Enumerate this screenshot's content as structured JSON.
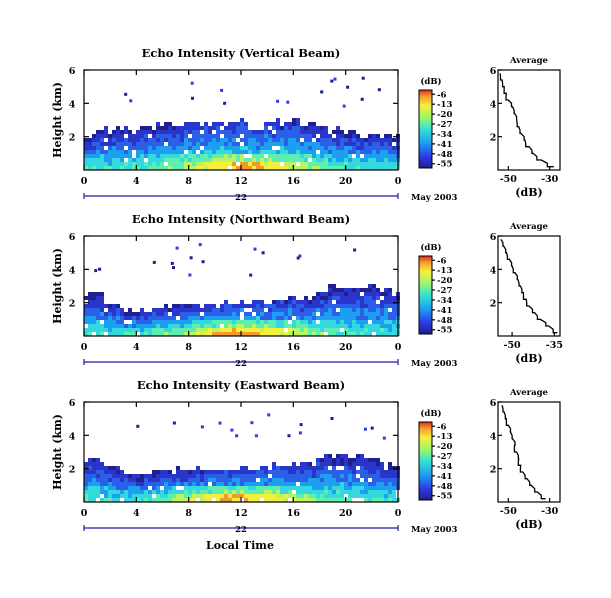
{
  "figure": {
    "xlabel": "Local Time",
    "date_label": "May 2003",
    "day_label": "22"
  },
  "chart_data": [
    {
      "type": "heatmap",
      "title": "Echo Intensity (Vertical Beam)",
      "ylabel": "Height (km)",
      "xlabel": "Local Time",
      "x_ticks": [
        "0",
        "4",
        "8",
        "12",
        "16",
        "20",
        "0"
      ],
      "xlim": [
        0,
        24
      ],
      "y_ticks": [
        "2",
        "4",
        "6"
      ],
      "ylim": [
        0,
        6
      ],
      "colorbar": {
        "label": "(dB)",
        "ticks": [
          "-6",
          "-13",
          "-20",
          "-27",
          "-34",
          "-41",
          "-48",
          "-55"
        ],
        "range": [
          -58,
          -3
        ]
      },
      "top_km": [
        2.0,
        2.3,
        2.4,
        2.5,
        2.4,
        2.5,
        2.8,
        2.7,
        2.8,
        2.8,
        2.9,
        2.9,
        2.9,
        2.6,
        2.8,
        2.9,
        2.9,
        2.8,
        2.7,
        2.6,
        2.4,
        2.0,
        2.2,
        2.1,
        2.0
      ],
      "average_profile": {
        "title": "Average",
        "xlabel": "(dB)",
        "x_ticks": [
          "-50",
          "-30"
        ],
        "xlim": [
          -55,
          -25
        ],
        "y_ticks": [
          "2",
          "4",
          "6"
        ],
        "ylim": [
          0,
          6
        ],
        "height_km": [
          0.2,
          0.6,
          1.0,
          1.4,
          1.8,
          2.2,
          2.6,
          3.0,
          3.4,
          3.8,
          4.2,
          4.6,
          5.0,
          5.4,
          5.8
        ],
        "db": [
          -28,
          -34,
          -38,
          -40,
          -42,
          -44,
          -45,
          -46,
          -47,
          -48,
          -50,
          -51,
          -52,
          -53,
          -54
        ]
      }
    },
    {
      "type": "heatmap",
      "title": "Echo Intensity (Northward Beam)",
      "ylabel": "Height (km)",
      "xlabel": "Local Time",
      "x_ticks": [
        "0",
        "4",
        "8",
        "12",
        "16",
        "20",
        "0"
      ],
      "xlim": [
        0,
        24
      ],
      "y_ticks": [
        "2",
        "4",
        "6"
      ],
      "ylim": [
        0,
        6
      ],
      "colorbar": {
        "label": "(dB)",
        "ticks": [
          "-6",
          "-13",
          "-20",
          "-27",
          "-34",
          "-41",
          "-48",
          "-55"
        ],
        "range": [
          -58,
          -3
        ]
      },
      "top_km": [
        2.6,
        2.5,
        2.0,
        1.6,
        1.5,
        1.6,
        1.7,
        1.8,
        1.8,
        1.9,
        1.9,
        1.9,
        2.0,
        2.1,
        2.1,
        2.1,
        2.2,
        2.3,
        2.7,
        3.0,
        3.0,
        3.0,
        2.9,
        2.8,
        2.6
      ],
      "average_profile": {
        "title": "Average",
        "xlabel": "(dB)",
        "x_ticks": [
          "-50",
          "-35"
        ],
        "xlim": [
          -55,
          -33
        ],
        "y_ticks": [
          "2",
          "4",
          "6"
        ],
        "ylim": [
          0,
          6
        ],
        "height_km": [
          0.2,
          0.6,
          1.0,
          1.4,
          1.8,
          2.2,
          2.6,
          3.0,
          3.4,
          3.8,
          4.2,
          4.6,
          5.0,
          5.4,
          5.8
        ],
        "db": [
          -34,
          -37,
          -40,
          -42,
          -44,
          -45,
          -46,
          -47,
          -48,
          -49,
          -50,
          -51,
          -52,
          -53,
          -54
        ]
      }
    },
    {
      "type": "heatmap",
      "title": "Echo Intensity (Eastward Beam)",
      "ylabel": "Height (km)",
      "xlabel": "Local Time",
      "x_ticks": [
        "0",
        "4",
        "8",
        "12",
        "16",
        "20",
        "0"
      ],
      "xlim": [
        0,
        24
      ],
      "y_ticks": [
        "2",
        "4",
        "6"
      ],
      "ylim": [
        0,
        6
      ],
      "colorbar": {
        "label": "(dB)",
        "ticks": [
          "-6",
          "-13",
          "-20",
          "-27",
          "-34",
          "-41",
          "-48",
          "-55"
        ],
        "range": [
          -58,
          -3
        ]
      },
      "top_km": [
        2.6,
        2.5,
        2.1,
        1.8,
        1.7,
        1.8,
        1.9,
        1.9,
        1.9,
        2.0,
        2.0,
        2.0,
        2.1,
        2.1,
        2.2,
        2.2,
        2.3,
        2.4,
        2.6,
        2.8,
        2.8,
        2.8,
        2.7,
        2.4,
        2.2
      ],
      "average_profile": {
        "title": "Average",
        "xlabel": "(dB)",
        "x_ticks": [
          "-50",
          "-30"
        ],
        "xlim": [
          -55,
          -25
        ],
        "y_ticks": [
          "2",
          "4",
          "6"
        ],
        "ylim": [
          0,
          6
        ],
        "height_km": [
          0.2,
          0.6,
          1.0,
          1.4,
          1.8,
          2.2,
          2.6,
          3.0,
          3.4,
          3.8,
          4.2,
          4.6,
          5.0,
          5.4,
          5.8
        ],
        "db": [
          -32,
          -36,
          -39,
          -41,
          -43,
          -44,
          -45,
          -46,
          -47,
          -48,
          -49,
          -50,
          -51,
          -52,
          -53
        ]
      }
    }
  ]
}
